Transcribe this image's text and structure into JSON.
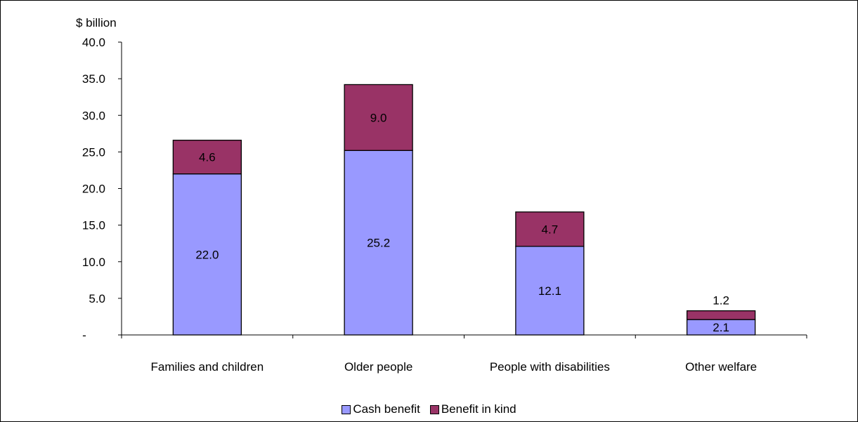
{
  "chart_data": {
    "type": "bar",
    "stacked": true,
    "ylabel": "$ billion",
    "ylim": [
      0,
      40
    ],
    "yticks": [
      0,
      5,
      10,
      15,
      20,
      25,
      30,
      35,
      40
    ],
    "ytick_labels": [
      "-",
      "5.0",
      "10.0",
      "15.0",
      "20.0",
      "25.0",
      "30.0",
      "35.0",
      "40.0"
    ],
    "categories": [
      "Families and children",
      "Older people",
      "People with disabilities",
      "Other welfare"
    ],
    "series": [
      {
        "name": "Cash benefit",
        "values": [
          22.0,
          25.2,
          12.1,
          2.1
        ],
        "labels": [
          "22.0",
          "25.2",
          "12.1",
          "2.1"
        ],
        "color": "#9999ff"
      },
      {
        "name": "Benefit in kind",
        "values": [
          4.6,
          9.0,
          4.7,
          1.2
        ],
        "labels": [
          "4.6",
          "9.0",
          "4.7",
          "1.2"
        ],
        "color": "#993366"
      }
    ],
    "grid": false,
    "legend_position": "bottom"
  }
}
